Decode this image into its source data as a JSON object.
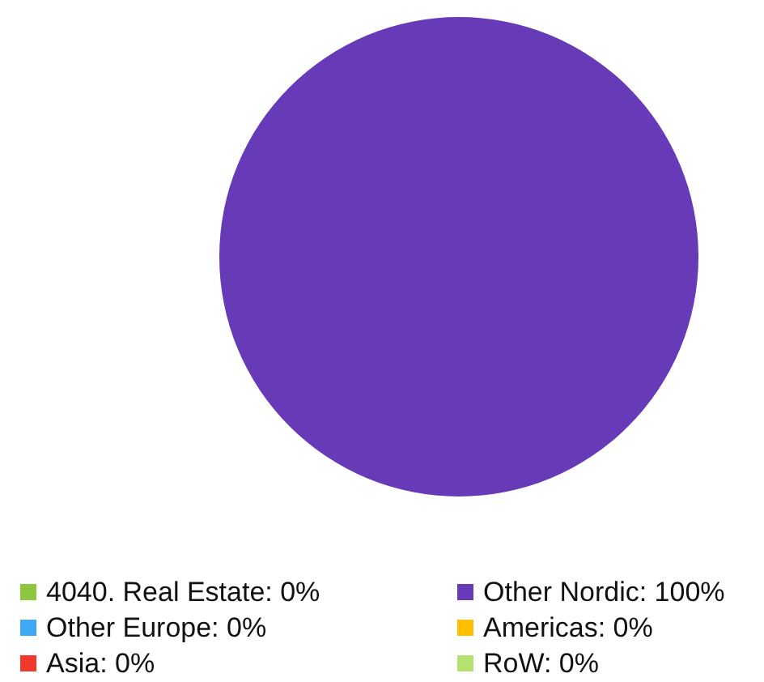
{
  "chart_data": {
    "type": "pie",
    "categories": [
      "4040. Real Estate",
      "Other Nordic",
      "Other Europe",
      "Americas",
      "Asia",
      "RoW"
    ],
    "values": [
      0,
      100,
      0,
      0,
      0,
      0
    ],
    "colors": [
      "#8dc63f",
      "#673ab7",
      "#3fa9f5",
      "#ffc000",
      "#f0392b",
      "#b5e16f"
    ],
    "value_labels": [
      "0%",
      "100%",
      "0%",
      "0%",
      "0%",
      "0%"
    ],
    "legend": "bottom"
  }
}
